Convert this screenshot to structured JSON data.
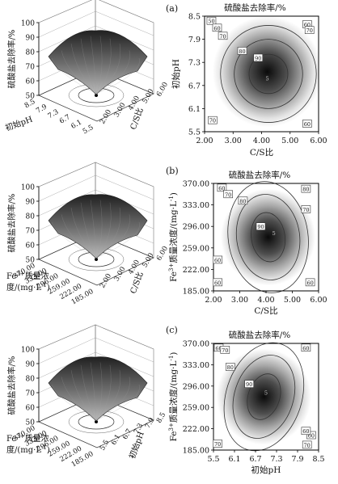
{
  "chart_data": [
    {
      "id": "a",
      "panel_label": "(a)",
      "type": "surface_and_contour",
      "response": "硫酸盐去除率/%",
      "x_factor": "C/S比",
      "y_factor": "初始pH",
      "contour": {
        "title": "硫酸盐去除率/%",
        "xlabel": "C/S比",
        "ylabel": "初始pH",
        "xticks": [
          "2.00",
          "3.00",
          "4.00",
          "5.00",
          "6.00"
        ],
        "yticks": [
          "5.5",
          "6.1",
          "6.7",
          "7.3",
          "7.9",
          "8.5"
        ],
        "xlim": [
          2.0,
          6.0
        ],
        "ylim": [
          5.5,
          8.5
        ],
        "optimum": {
          "x": 4.2,
          "y": 6.9,
          "label": "5"
        },
        "levels": [
          {
            "label": "70",
            "value": 70
          },
          {
            "label": "80",
            "value": 80
          },
          {
            "label": "90",
            "value": 90
          }
        ],
        "level_tags": [
          "50",
          "60",
          "70",
          "80",
          "90",
          "60",
          "70",
          "60",
          "70"
        ]
      },
      "surface": {
        "zlabel": "硫酸盐去除率/%",
        "zticks": [
          "50",
          "60",
          "70",
          "80",
          "90",
          "100"
        ],
        "left_axis_title": "初始pH",
        "left_ticks": [
          "8.5",
          "7.9",
          "7.3",
          "6.7",
          "6.1",
          "5.5"
        ],
        "right_axis_title": "C/S比",
        "right_ticks": [
          "2.00",
          "3.00",
          "4.00",
          "5.00",
          "6.00"
        ]
      }
    },
    {
      "id": "b",
      "panel_label": "(b)",
      "type": "surface_and_contour",
      "response": "硫酸盐去除率/%",
      "x_factor": "C/S比",
      "y_factor": "Fe3+质量浓度/(mg·L-1)",
      "contour": {
        "title": "硫酸盐去除率/%",
        "xlabel": "C/S比",
        "ylabel_main": "Fe",
        "ylabel_sup": "3+",
        "ylabel_rest": "质量浓度/(mg·L",
        "ylabel_sup2": "-1",
        "ylabel_end": ")",
        "xticks": [
          "2.00",
          "3.00",
          "4.00",
          "5.00",
          "6.00"
        ],
        "yticks": [
          "185.00",
          "222.00",
          "259.00",
          "296.00",
          "333.00",
          "370.00"
        ],
        "xlim": [
          2.0,
          6.0
        ],
        "ylim": [
          185.0,
          370.0
        ],
        "optimum": {
          "x": 4.3,
          "y": 285.0,
          "label": "5"
        },
        "levels": [
          {
            "label": "60",
            "value": 60
          },
          {
            "label": "80",
            "value": 80
          },
          {
            "label": "90",
            "value": 90
          }
        ],
        "level_tags": [
          "60",
          "70",
          "80",
          "90",
          "80",
          "70",
          "60",
          "60",
          "60"
        ]
      },
      "surface": {
        "zlabel": "硫酸盐去除率/%",
        "zticks": [
          "50",
          "60",
          "70",
          "80",
          "90",
          "100"
        ],
        "left_axis_title_1": "Fe",
        "left_axis_title_sup": "3+",
        "left_axis_title_2": "质量浓",
        "left_axis_title_3": "度/(mg·L",
        "left_axis_title_sup2": "-1",
        "left_axis_title_4": ")",
        "left_ticks": [
          "370.00",
          "333.00",
          "296.00",
          "259.00",
          "222.00",
          "185.00"
        ],
        "right_axis_title": "C/S比",
        "right_ticks": [
          "2.00",
          "3.00",
          "4.00",
          "5.00",
          "6.00"
        ]
      }
    },
    {
      "id": "c",
      "panel_label": "(c)",
      "type": "surface_and_contour",
      "response": "硫酸盐去除率/%",
      "x_factor": "初始pH",
      "y_factor": "Fe3+质量浓度/(mg·L-1)",
      "contour": {
        "title": "硫酸盐去除率/%",
        "xlabel": "初始pH",
        "ylabel_main": "Fe",
        "ylabel_sup": "3+",
        "ylabel_rest": "质量浓度/(mg·L",
        "ylabel_sup2": "-1",
        "ylabel_end": ")",
        "xticks": [
          "5.5",
          "6.1",
          "6.7",
          "7.3",
          "7.9",
          "8.5"
        ],
        "yticks": [
          "185.00",
          "222.00",
          "259.00",
          "296.00",
          "333.00",
          "370.00"
        ],
        "xlim": [
          5.5,
          8.5
        ],
        "ylim": [
          185.0,
          370.0
        ],
        "optimum": {
          "x": 7.0,
          "y": 285.0,
          "label": "5"
        },
        "levels": [
          {
            "label": "60",
            "value": 60
          },
          {
            "label": "80",
            "value": 80
          },
          {
            "label": "90",
            "value": 90
          }
        ],
        "level_tags": [
          "60",
          "70",
          "80",
          "90",
          "60",
          "60",
          "70",
          "70",
          "60"
        ]
      },
      "surface": {
        "zlabel": "硫酸盐去除率/%",
        "zticks": [
          "50",
          "60",
          "70",
          "80",
          "90",
          "100"
        ],
        "left_axis_title_1": "Fe",
        "left_axis_title_sup": "3+",
        "left_axis_title_2": "质量浓",
        "left_axis_title_3": "度/(mg·L",
        "left_axis_title_sup2": "-1",
        "left_axis_title_4": ")",
        "left_ticks": [
          "370.00",
          "333.00",
          "296.00",
          "259.00",
          "222.00",
          "185.00"
        ],
        "right_axis_title": "初始pH",
        "right_ticks": [
          "5.5",
          "6.1",
          "6.7",
          "7.3",
          "7.9",
          "8.5"
        ]
      }
    }
  ]
}
